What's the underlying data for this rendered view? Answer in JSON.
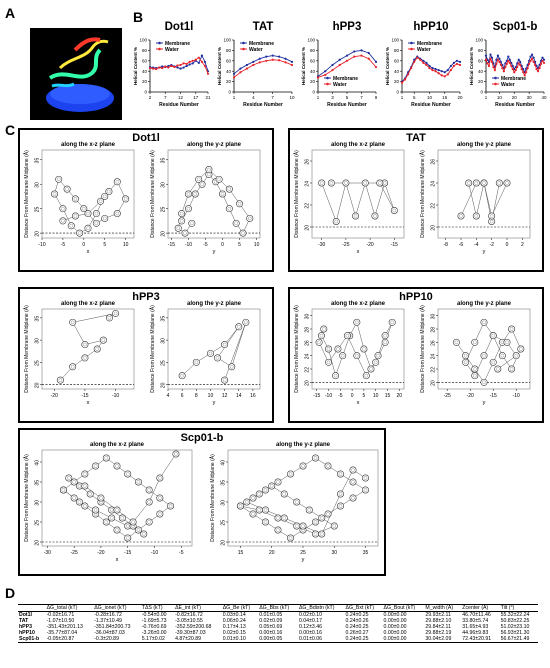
{
  "figure": {
    "panel_labels": {
      "a": "A",
      "b": "B",
      "c": "C",
      "d": "D"
    }
  },
  "helical": {
    "ylabel": "Helical Content %",
    "xlabel": "Residue Number",
    "legend": {
      "membrane": "Membrane",
      "water": "Water"
    },
    "colors": {
      "membrane": "#1f2f9e",
      "water": "#e8232a"
    },
    "charts": [
      {
        "title": "Dot1l",
        "xticks": [
          "2",
          "7",
          "12",
          "17",
          "21"
        ],
        "yticks": [
          "0",
          "20",
          "40",
          "60",
          "80",
          "100"
        ],
        "x_range": [
          2,
          21
        ],
        "ylim": [
          0,
          100
        ],
        "membrane": [
          48,
          47,
          46,
          47,
          49,
          48,
          50,
          52,
          49,
          47,
          45,
          47,
          50,
          53,
          55,
          60,
          56,
          70,
          58,
          40
        ],
        "water": [
          46,
          45,
          44,
          47,
          46,
          49,
          47,
          50,
          48,
          51,
          52,
          55,
          54,
          58,
          60,
          62,
          66,
          58,
          50,
          35
        ]
      },
      {
        "title": "TAT",
        "xticks": [
          "1",
          "4",
          "7",
          "10"
        ],
        "yticks": [
          "0",
          "20",
          "40",
          "60",
          "80",
          "100"
        ],
        "x_range": [
          1,
          10
        ],
        "ylim": [
          0,
          100
        ],
        "membrane": [
          35,
          45,
          52,
          58,
          64,
          68,
          70,
          68,
          64,
          58
        ],
        "water": [
          28,
          38,
          45,
          52,
          57,
          60,
          62,
          61,
          57,
          52
        ]
      },
      {
        "title": "hPP3",
        "xticks": [
          "1",
          "3",
          "5",
          "7",
          "9"
        ],
        "yticks": [
          "0",
          "20",
          "40",
          "60",
          "80",
          "100"
        ],
        "x_range": [
          1,
          9
        ],
        "ylim": [
          0,
          100
        ],
        "membrane": [
          30,
          40,
          52,
          62,
          70,
          78,
          80,
          75,
          58
        ],
        "water": [
          28,
          33,
          42,
          52,
          60,
          68,
          70,
          64,
          48
        ]
      },
      {
        "title": "hPP10",
        "xticks": [
          "1",
          "5",
          "10",
          "15",
          "20"
        ],
        "yticks": [
          "0",
          "20",
          "40",
          "60",
          "80",
          "100"
        ],
        "x_range": [
          1,
          20
        ],
        "ylim": [
          0,
          100
        ],
        "membrane": [
          20,
          26,
          38,
          48,
          62,
          68,
          64,
          60,
          56,
          50,
          46,
          44,
          42,
          40,
          38,
          42,
          50,
          56,
          60,
          58
        ],
        "water": [
          18,
          24,
          34,
          46,
          58,
          66,
          62,
          56,
          52,
          46,
          42,
          40,
          36,
          32,
          30,
          34,
          42,
          50,
          54,
          52
        ]
      },
      {
        "title": "Scp01-b",
        "xticks": [
          "1",
          "10",
          "20",
          "30",
          "40"
        ],
        "yticks": [
          "0",
          "20",
          "40",
          "60",
          "80",
          "100"
        ],
        "x_range": [
          1,
          40
        ],
        "ylim": [
          0,
          100
        ],
        "membrane": [
          70,
          62,
          58,
          72,
          66,
          55,
          48,
          62,
          70,
          64,
          58,
          52,
          46,
          55,
          60,
          68,
          62,
          56,
          50,
          44,
          48,
          55,
          62,
          58,
          50,
          44,
          38,
          45,
          52,
          60,
          68,
          72,
          66,
          58,
          50,
          46,
          52,
          60,
          66,
          62
        ],
        "water": [
          62,
          55,
          50,
          64,
          58,
          48,
          42,
          54,
          62,
          58,
          52,
          46,
          40,
          48,
          54,
          60,
          56,
          50,
          44,
          38,
          42,
          48,
          55,
          52,
          44,
          38,
          32,
          38,
          46,
          54,
          60,
          64,
          58,
          52,
          44,
          40,
          46,
          54,
          60,
          56
        ]
      }
    ]
  },
  "positions": {
    "ylabel": "Distance From Membrane Midplane (Å)",
    "panels": [
      {
        "name": "Dot1l",
        "xz": {
          "title": "along the x-z plane",
          "xlabel": "x",
          "xticks": [
            "-10",
            "-5",
            "0",
            "5",
            "10"
          ],
          "xlim": [
            -10,
            12
          ],
          "yticks": [
            "20",
            "25",
            "30",
            "35"
          ],
          "ylim": [
            19,
            37
          ],
          "x": [
            -5,
            -2,
            1,
            4,
            6,
            8,
            10,
            8,
            5,
            3,
            0,
            -2,
            -4,
            -6,
            -7,
            -5,
            -3,
            -1,
            1,
            3,
            5
          ],
          "y": [
            22.5,
            23.5,
            24,
            26.5,
            28.5,
            30.5,
            27,
            24,
            23,
            22,
            25,
            27,
            29,
            31,
            28,
            25,
            21.5,
            20,
            21,
            24,
            27.5
          ]
        },
        "yz": {
          "title": "along the y-z plane",
          "xlabel": "y",
          "xticks": [
            "-15",
            "-10",
            "-5",
            "0",
            "5",
            "10"
          ],
          "xlim": [
            -16,
            11
          ],
          "yticks": [
            "20",
            "25",
            "30",
            "35"
          ],
          "ylim": [
            19,
            37
          ],
          "x": [
            -12,
            -10,
            -8,
            -6,
            -4,
            -2,
            0,
            2,
            4,
            6,
            8,
            5,
            2,
            -1,
            -4,
            -7,
            -10,
            -12,
            -13,
            -11,
            -9
          ],
          "y": [
            22.5,
            25,
            28,
            30,
            32,
            30.5,
            28,
            25,
            22,
            20,
            23,
            26,
            29,
            31,
            33,
            31,
            28,
            24,
            21,
            20,
            22
          ]
        }
      },
      {
        "name": "TAT",
        "xz": {
          "title": "along the x-z plane",
          "xlabel": "x",
          "xticks": [
            "-30",
            "-25",
            "-20",
            "-15"
          ],
          "xlim": [
            -32,
            -13
          ],
          "yticks": [
            "20",
            "22",
            "24",
            "26"
          ],
          "ylim": [
            19,
            27
          ],
          "x": [
            -30,
            -27,
            -25,
            -23,
            -21,
            -19,
            -17,
            -15,
            -18,
            -28
          ],
          "y": [
            24,
            20.5,
            24,
            21,
            24,
            21,
            24,
            21.5,
            24,
            24
          ]
        },
        "yz": {
          "title": "along the y-z plane",
          "xlabel": "y",
          "xticks": [
            "-8",
            "-6",
            "-4",
            "-2",
            "0",
            "2"
          ],
          "xlim": [
            -9,
            3
          ],
          "yticks": [
            "20",
            "22",
            "24",
            "26"
          ],
          "ylim": [
            19,
            27
          ],
          "x": [
            -6,
            -4,
            -3,
            -2,
            -1,
            0,
            -2,
            -3,
            -4,
            -5
          ],
          "y": [
            21,
            24,
            24,
            20.5,
            24,
            24,
            21,
            24,
            21,
            24
          ]
        }
      },
      {
        "name": "hPP3",
        "xz": {
          "title": "along the x-z plane",
          "xlabel": "x",
          "xticks": [
            "-20",
            "-15",
            "-10"
          ],
          "xlim": [
            -22,
            -7
          ],
          "yticks": [
            "20",
            "25",
            "30",
            "35"
          ],
          "ylim": [
            19,
            37
          ],
          "x": [
            -19,
            -17,
            -15,
            -13,
            -12,
            -15,
            -17,
            -10,
            -11
          ],
          "y": [
            21,
            24,
            26,
            28,
            30,
            29,
            34,
            36,
            35
          ]
        },
        "yz": {
          "title": "along the y-z plane",
          "xlabel": "y",
          "xticks": [
            "4",
            "6",
            "8",
            "10",
            "12",
            "14",
            "16"
          ],
          "xlim": [
            4,
            17
          ],
          "yticks": [
            "20",
            "25",
            "30",
            "35"
          ],
          "ylim": [
            19,
            37
          ],
          "x": [
            6,
            8,
            10,
            12,
            14,
            11,
            13,
            15,
            12
          ],
          "y": [
            22,
            25,
            27,
            29,
            33,
            26,
            24,
            34,
            21
          ]
        }
      },
      {
        "name": "hPP10",
        "xz": {
          "title": "along the x-z plane",
          "xlabel": "x",
          "xticks": [
            "-15",
            "-10",
            "-5",
            "0",
            "5",
            "10",
            "15",
            "20"
          ],
          "xlim": [
            -17,
            22
          ],
          "yticks": [
            "20",
            "22",
            "24",
            "26",
            "28",
            "30"
          ],
          "ylim": [
            19,
            31
          ],
          "x": [
            -13,
            -10,
            -7,
            -4,
            -1,
            2,
            5,
            8,
            11,
            14,
            17,
            14,
            10,
            6,
            2,
            -2,
            -6,
            -10,
            -14,
            -12
          ],
          "y": [
            27,
            25,
            21,
            24,
            27,
            29,
            25,
            22,
            24,
            27,
            29,
            26,
            23,
            21,
            24,
            27,
            25,
            23,
            26,
            28
          ]
        },
        "yz": {
          "title": "along the y-z plane",
          "xlabel": "y",
          "xticks": [
            "-25",
            "-20",
            "-15",
            "-10"
          ],
          "xlim": [
            -27,
            -7
          ],
          "yticks": [
            "20",
            "22",
            "24",
            "26",
            "28",
            "30"
          ],
          "ylim": [
            19,
            31
          ],
          "x": [
            -23,
            -21,
            -19,
            -17,
            -15,
            -13,
            -11,
            -9,
            -11,
            -13,
            -15,
            -17,
            -19,
            -21,
            -19,
            -17,
            -15,
            -12,
            -10,
            -14
          ],
          "y": [
            26,
            24,
            22,
            20,
            23,
            26,
            28,
            25,
            22,
            24,
            27,
            29,
            26,
            23,
            21,
            24,
            27,
            26,
            24,
            22
          ]
        }
      },
      {
        "name": "Scp01-b",
        "xz": {
          "title": "along the x-z plane",
          "xlabel": "x",
          "xticks": [
            "-30",
            "-25",
            "-20",
            "-15",
            "-10",
            "-5"
          ],
          "xlim": [
            -31,
            -3
          ],
          "yticks": [
            "20",
            "25",
            "30",
            "35",
            "40"
          ],
          "ylim": [
            19,
            43
          ],
          "x": [
            -27,
            -25,
            -23,
            -21,
            -19,
            -17,
            -15,
            -13,
            -11,
            -9,
            -7,
            -9,
            -11,
            -13,
            -15,
            -17,
            -19,
            -21,
            -23,
            -25,
            -27,
            -24,
            -21,
            -18,
            -15,
            -12,
            -14,
            -16,
            -18,
            -20,
            -22,
            -24,
            -26,
            -23,
            -20,
            -17,
            -14,
            -11,
            -9,
            -6
          ],
          "y": [
            33,
            31,
            29,
            27,
            25,
            23,
            21,
            23,
            25,
            27,
            29,
            31,
            33,
            35,
            37,
            39,
            41,
            39,
            37,
            35,
            33,
            30,
            28,
            26,
            24,
            22,
            24,
            26,
            28,
            30,
            32,
            34,
            36,
            34,
            31,
            28,
            25,
            30,
            36,
            42
          ]
        },
        "yz": {
          "title": "along the y-z plane",
          "xlabel": "y",
          "xticks": [
            "15",
            "20",
            "25",
            "30",
            "35"
          ],
          "xlim": [
            13,
            37
          ],
          "yticks": [
            "20",
            "25",
            "30",
            "35",
            "40"
          ],
          "ylim": [
            19,
            43
          ],
          "x": [
            15,
            17,
            19,
            21,
            23,
            25,
            27,
            29,
            31,
            33,
            35,
            33,
            31,
            29,
            27,
            25,
            23,
            21,
            19,
            17,
            15,
            18,
            21,
            24,
            27,
            30,
            28,
            26,
            24,
            22,
            20,
            18,
            16,
            19,
            22,
            25,
            28,
            31,
            33,
            35
          ],
          "y": [
            29,
            27,
            25,
            23,
            21,
            23,
            25,
            27,
            29,
            31,
            33,
            35,
            37,
            39,
            41,
            39,
            37,
            35,
            33,
            31,
            29,
            28,
            26,
            24,
            22,
            24,
            26,
            28,
            30,
            32,
            34,
            32,
            30,
            28,
            26,
            24,
            22,
            32,
            38,
            36
          ]
        }
      }
    ]
  },
  "table": {
    "headers": [
      "",
      "ΔG_total (kT)",
      "ΔG_ionet (kT)",
      "TΔS (kT)",
      "ΔE_int (kT)",
      "ΔG_Be (kT)",
      "ΔG_Bbs (kT)",
      "ΔG_Bdistn (kT)",
      "ΔG_Bxt (kT)",
      "ΔG_Bout (kT)",
      "M_width (Å)",
      "Zcenter (Å)",
      "Tilt (°)"
    ],
    "rows": [
      [
        "Dot1l",
        "-0.02±16.71",
        "-0.28±16.72",
        "-0.54±0.00",
        "-0.82±16.72",
        "0.03±0.14",
        "0.01±0.05",
        "0.02±0.10",
        "0.24±0.25",
        "0.00±0.00",
        "29.93±2.11",
        "46.70±11.46",
        "55.32±22.24"
      ],
      [
        "TAT",
        "-1.07±10.50",
        "-1.37±10.49",
        "-1.69±5.73",
        "-3.05±10.55",
        "0.06±0.24",
        "0.02±0.09",
        "0.04±0.17",
        "0.24±0.26",
        "0.00±0.00",
        "29.88±2.10",
        "33.80±5.74",
        "50.83±22.25"
      ],
      [
        "hPP3",
        "-351.43±201.13",
        "-351.84±200.73",
        "-0.76±0.69",
        "-352.59±200.68",
        "0.17±4.13",
        "0.05±0.69",
        "0.12±3.46",
        "0.24±0.25",
        "0.00±0.00",
        "29.84±2.11",
        "31.65±4.93",
        "51.02±23.10"
      ],
      [
        "hPP10",
        "-35.77±87.04",
        "-36.04±87.03",
        "-3.26±0.00",
        "-39.30±87.03",
        "0.02±0.15",
        "0.00±0.16",
        "0.00±0.16",
        "0.26±0.27",
        "0.00±0.00",
        "29.88±2.19",
        "44.96±9.83",
        "56.93±21.30"
      ],
      [
        "Scp01-b",
        "-0.05±20.87",
        "-0.3±20.89",
        "5.17±0.02",
        "4.87±20.89",
        "0.01±0.10",
        "0.00±0.05",
        "0.01±0.06",
        "0.24±0.25",
        "0.00±0.00",
        "30.04±2.09",
        "72.43±20.91",
        "56.67±21.49"
      ]
    ]
  }
}
